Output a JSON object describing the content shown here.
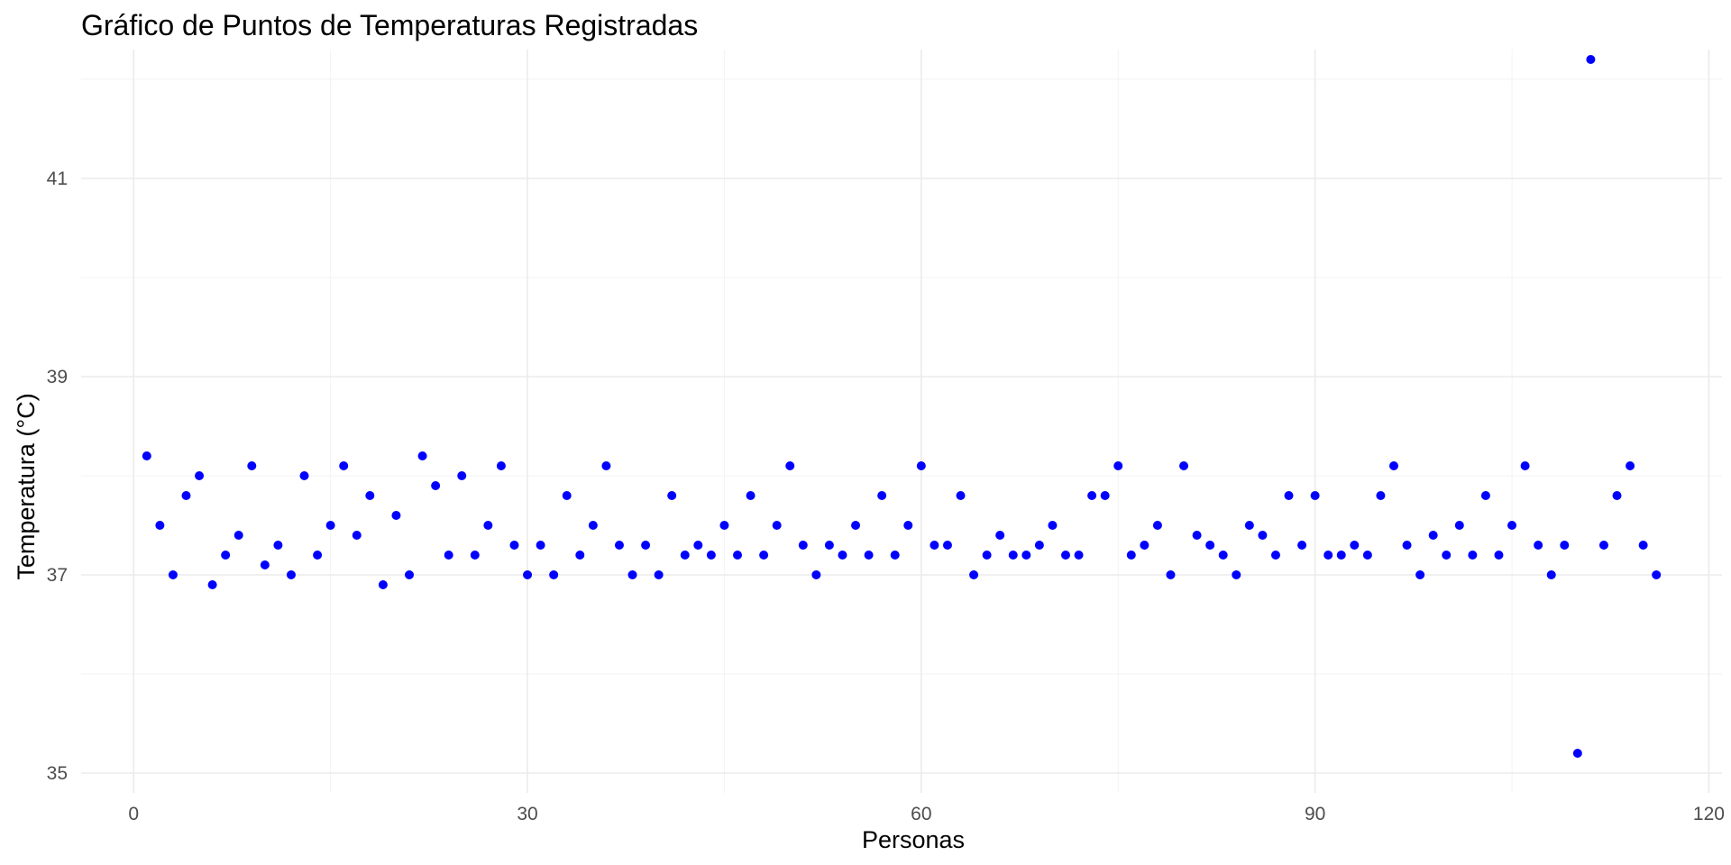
{
  "chart_data": {
    "type": "scatter",
    "title": "Gráfico de Puntos de Temperaturas Registradas",
    "xlabel": "Personas",
    "ylabel": "Temperatura (°C)",
    "xlim": [
      -4,
      121
    ],
    "ylim": [
      34.8,
      42.3
    ],
    "x_ticks": [
      0,
      30,
      60,
      90,
      120
    ],
    "x_tick_labels": [
      "0",
      "30",
      "60",
      "90",
      "120"
    ],
    "y_ticks": [
      35,
      37,
      39,
      41
    ],
    "y_tick_labels": [
      "35",
      "37",
      "39",
      "41"
    ],
    "x_minor_ticks": [
      15,
      45,
      75,
      105
    ],
    "y_minor_ticks": [
      36,
      38,
      40,
      42
    ],
    "grid": true,
    "legend": "none",
    "point_color": "#0000ff",
    "series": [
      {
        "x": [
          1,
          2,
          3,
          4,
          5,
          6,
          7,
          8,
          9,
          10,
          11,
          12,
          13,
          14,
          15,
          16,
          17,
          18,
          19,
          20,
          21,
          22,
          23,
          24,
          25,
          26,
          27,
          28,
          29,
          30,
          31,
          32,
          33,
          34,
          35,
          36,
          37,
          38,
          39,
          40,
          41,
          42,
          43,
          44,
          45,
          46,
          47,
          48,
          49,
          50,
          51,
          52,
          53,
          54,
          55,
          56,
          57,
          58,
          59,
          60,
          61,
          62,
          63,
          64,
          65,
          66,
          67,
          68,
          69,
          70,
          71,
          72,
          73,
          74,
          75,
          76,
          77,
          78,
          79,
          80,
          81,
          82,
          83,
          84,
          85,
          86,
          87,
          88,
          89,
          90,
          91,
          92,
          93,
          94,
          95,
          96,
          97,
          98,
          99,
          100,
          101,
          102,
          103,
          104,
          105,
          106,
          107,
          108,
          109,
          110,
          111,
          112,
          113,
          114,
          115,
          116
        ],
        "y": [
          38.2,
          37.5,
          37.0,
          37.8,
          38.0,
          36.9,
          37.2,
          37.4,
          38.1,
          37.1,
          37.3,
          37.0,
          38.0,
          37.2,
          37.5,
          38.1,
          37.4,
          37.8,
          36.9,
          37.6,
          37.0,
          38.2,
          37.9,
          37.2,
          38.0,
          37.2,
          37.5,
          38.1,
          37.3,
          37.0,
          37.3,
          37.0,
          37.8,
          37.2,
          37.5,
          38.1,
          37.3,
          37.0,
          37.3,
          37.0,
          37.8,
          37.2,
          37.3,
          37.2,
          37.5,
          37.2,
          37.8,
          37.2,
          37.5,
          38.1,
          37.3,
          37.0,
          37.3,
          37.2,
          37.5,
          37.2,
          37.8,
          37.2,
          37.5,
          38.1,
          37.3,
          37.3,
          37.8,
          37.0,
          37.2,
          37.4,
          37.2,
          37.2,
          37.3,
          37.5,
          37.2,
          37.2,
          37.8,
          37.8,
          38.1,
          37.2,
          37.3,
          37.5,
          37.0,
          38.1,
          37.4,
          37.3,
          37.2,
          37.0,
          37.5,
          37.4,
          37.2,
          37.8,
          37.3,
          37.8,
          37.2,
          37.2,
          37.3,
          37.2,
          37.8,
          38.1,
          37.3,
          37.0,
          37.4,
          37.2,
          37.5,
          37.2,
          37.8,
          37.2,
          37.5,
          38.1,
          37.3,
          37.0,
          37.3,
          35.2,
          42.2,
          37.3,
          37.8,
          38.1,
          37.3,
          37.0
        ]
      }
    ]
  }
}
